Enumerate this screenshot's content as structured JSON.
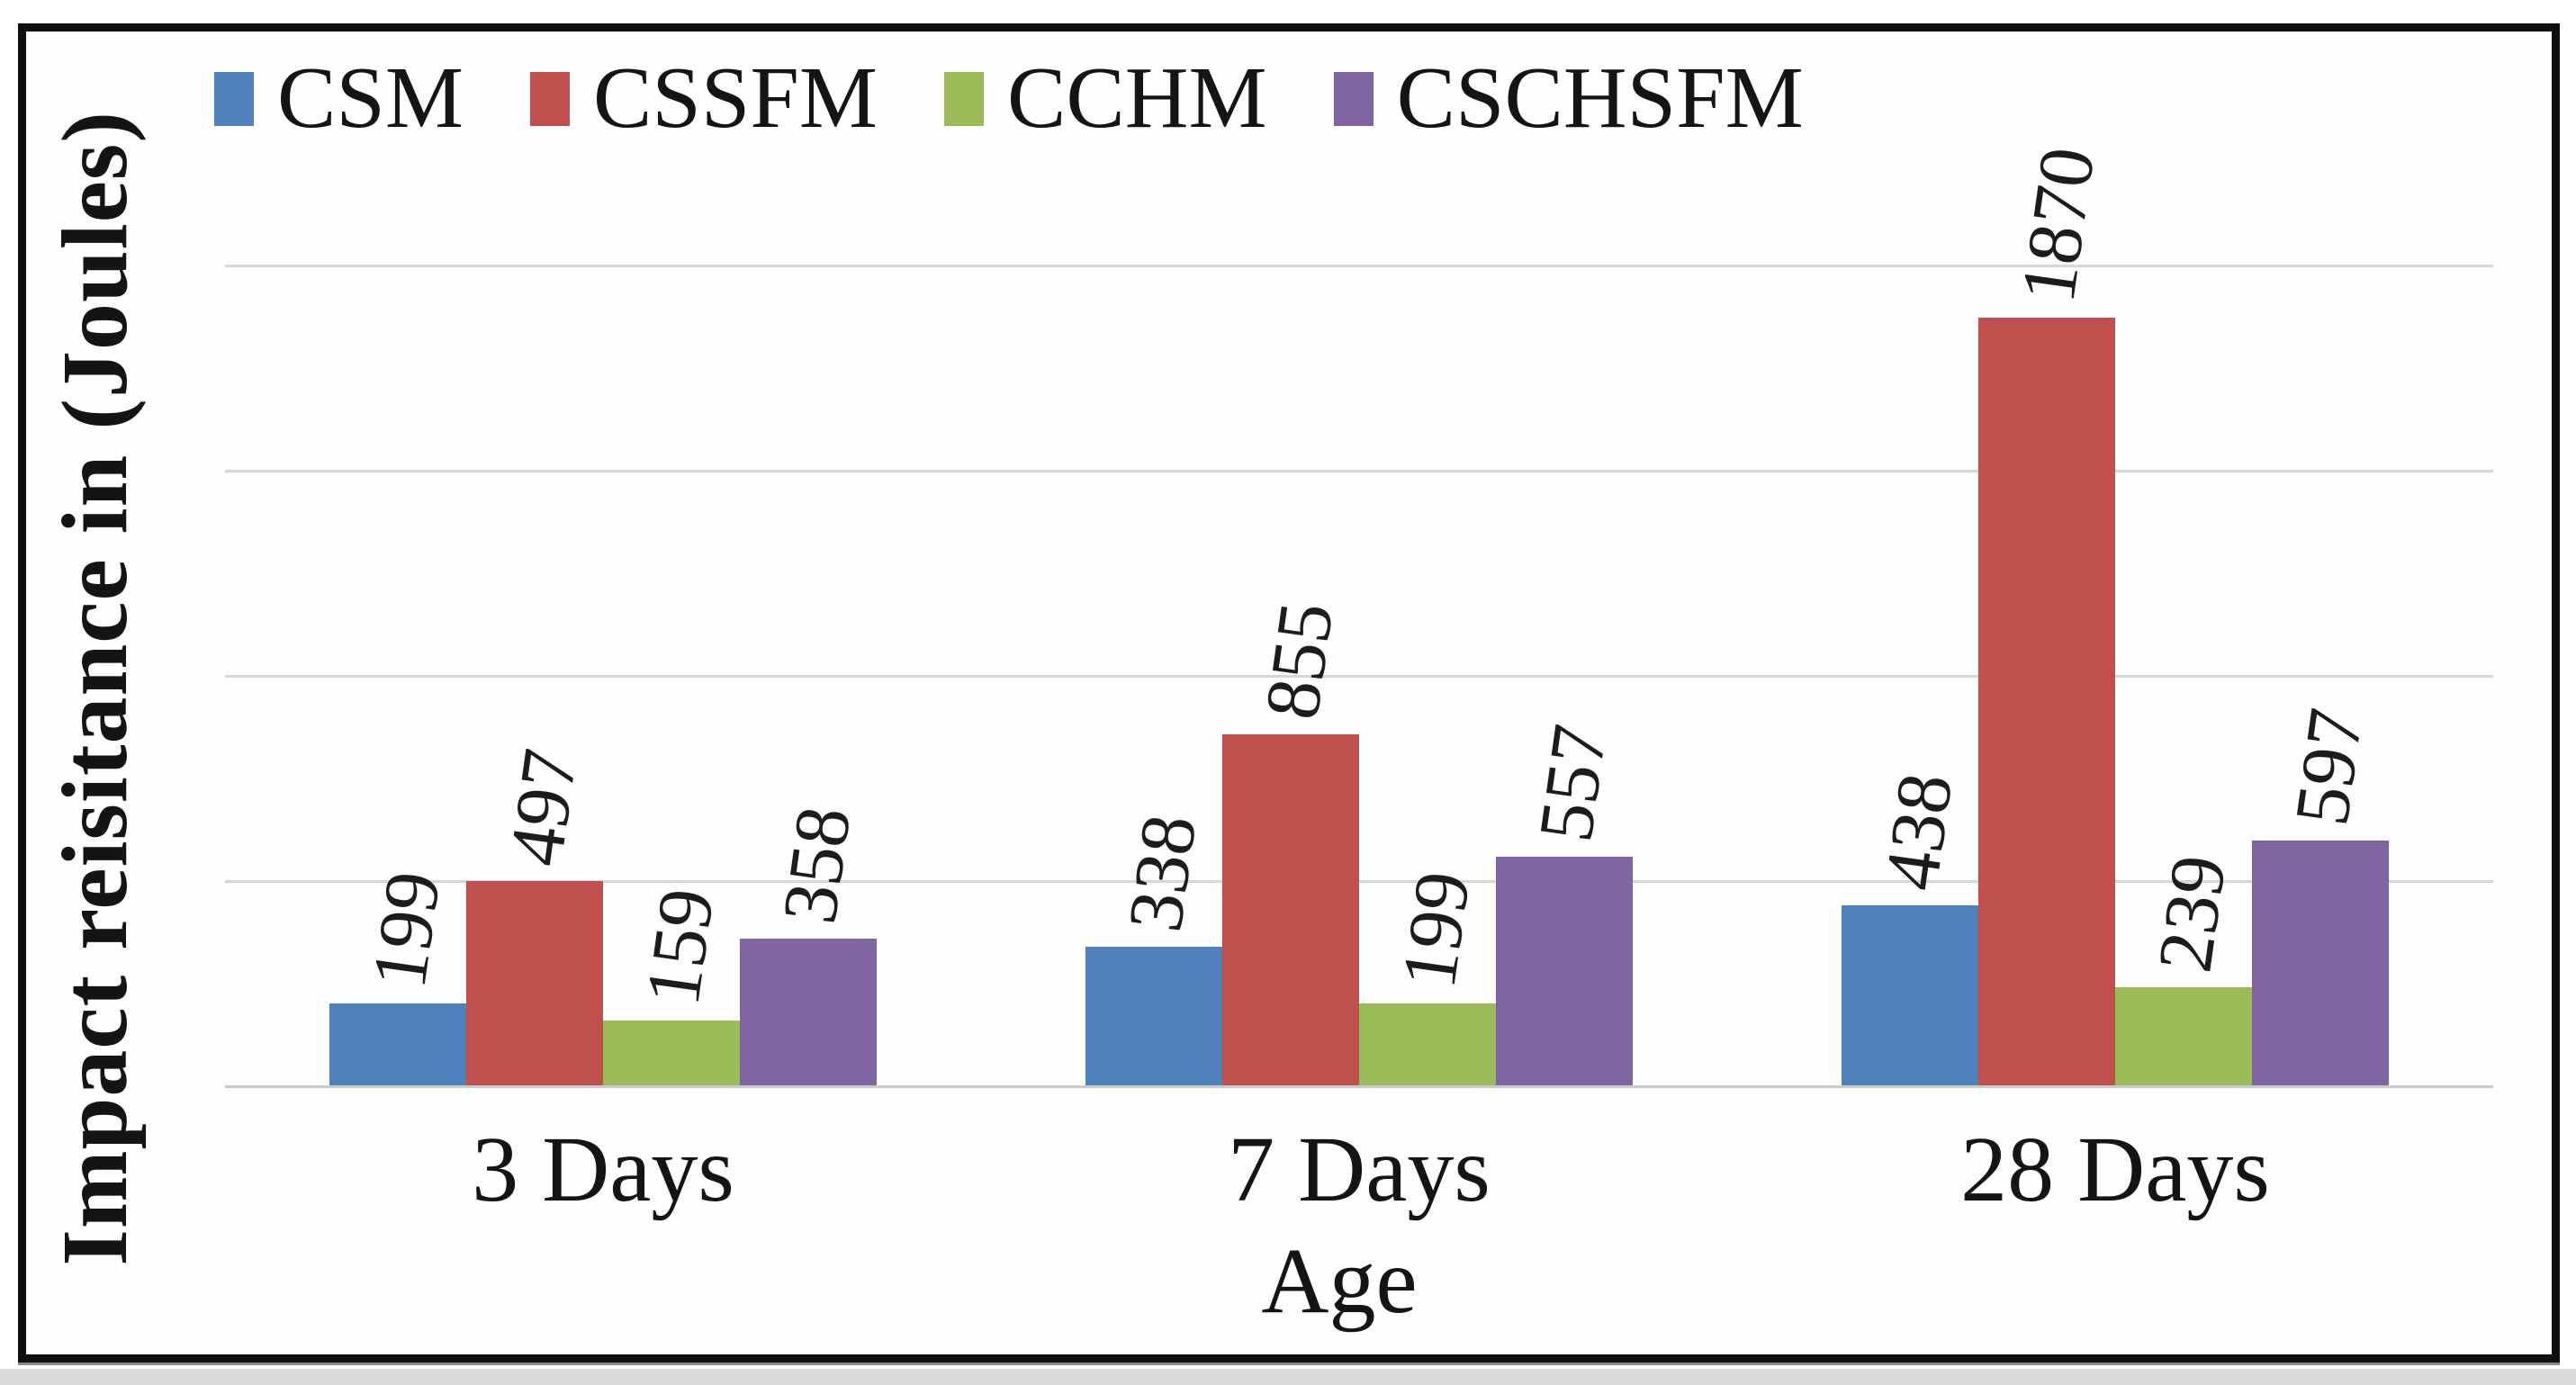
{
  "figure": {
    "border_color": "#0e0e0e",
    "background_color": "#fefefe",
    "gridline_color": "#d6d6d6"
  },
  "chart_data": {
    "type": "bar",
    "title": "",
    "categories": [
      "3 Days",
      "7 Days",
      "28 Days"
    ],
    "series": [
      {
        "name": "CSM",
        "color": "#4F81BD",
        "values": [
          199,
          338,
          438
        ]
      },
      {
        "name": "CSSFM",
        "color": "#C0504D",
        "values": [
          497,
          855,
          1870
        ]
      },
      {
        "name": "CCHM",
        "color": "#9BBB59",
        "values": [
          159,
          199,
          239
        ]
      },
      {
        "name": "CSCHSFM",
        "color": "#8064A2",
        "values": [
          358,
          557,
          597
        ]
      }
    ],
    "data_labels": [
      [
        199,
        497,
        159,
        358
      ],
      [
        338,
        855,
        199,
        557
      ],
      [
        438,
        1870,
        239,
        597
      ]
    ],
    "xlabel": "Age",
    "ylabel": "Impact reisitance in (Joules)",
    "ylim": [
      0,
      2000
    ],
    "gridline_step": 500,
    "y_tick_labels_visible": false,
    "grid": "horizontal",
    "legend_position": "top",
    "data_label_rotation_deg": -82
  }
}
